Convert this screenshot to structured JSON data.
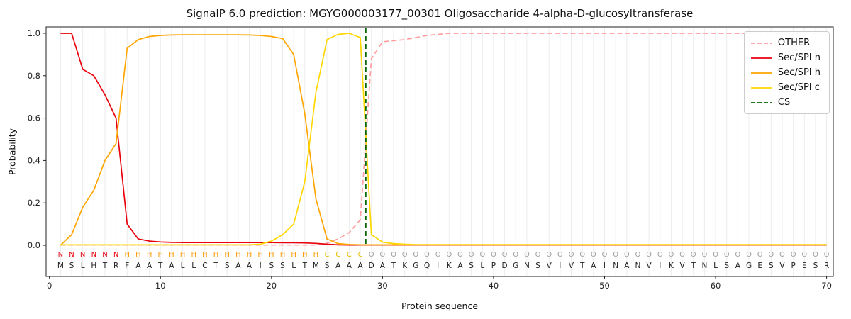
{
  "figure": {
    "title": "SignalP 6.0 prediction: MGYG000003177_00301 Oligosaccharide 4-alpha-D-glucosyltransferase",
    "xlabel": "Protein sequence",
    "ylabel": "Probability"
  },
  "legend": {
    "items": [
      {
        "label": "OTHER",
        "color": "#ff9f9f",
        "dash": true
      },
      {
        "label": "Sec/SPI n",
        "color": "#e8000b",
        "dash": false
      },
      {
        "label": "Sec/SPI h",
        "color": "#ffa500",
        "dash": false
      },
      {
        "label": "Sec/SPI c",
        "color": "#ffd700",
        "dash": false
      },
      {
        "label": "CS",
        "color": "#006400",
        "dash": true
      }
    ]
  },
  "chart_data": {
    "type": "line",
    "title": "SignalP 6.0 prediction: MGYG000003177_00301 Oligosaccharide 4-alpha-D-glucosyltransferase",
    "xlabel": "Protein sequence",
    "ylabel": "Probability",
    "xlim": [
      0,
      70
    ],
    "ylim": [
      0.0,
      1.0
    ],
    "x_ticks": [
      0,
      10,
      20,
      30,
      40,
      50,
      60,
      70
    ],
    "y_ticks": [
      "0.0",
      "0.2",
      "0.4",
      "0.6",
      "0.8",
      "1.0"
    ],
    "grid": "vertical-per-residue",
    "legend_position": "upper right",
    "cs_after_position": 28,
    "sequence": "MSLHTRFAATALLCTSAAISSLTMSAAADATKGQIKASLPDGNSVIVTAINANVIKVTNLSAGESVPESR",
    "regions": "NNNNNNHHHHHHHHHHHHHHHHHHCCCCOOOOOOOOOOOOOOOOOOOOOOOOOOOOOOOOOOOOOOOOOO",
    "region_colors": {
      "N": "#e8000b",
      "H": "#ff9900",
      "C": "#e8c000",
      "O": "#a0a0a0"
    },
    "series": [
      {
        "name": "OTHER",
        "color": "#ff9f9f",
        "dash": true,
        "values": [
          0.001,
          0.001,
          0.001,
          0.001,
          0.001,
          0.001,
          0.001,
          0.001,
          0.001,
          0.001,
          0.001,
          0.001,
          0.001,
          0.001,
          0.001,
          0.001,
          0.001,
          0.001,
          0.001,
          0.001,
          0.001,
          0.001,
          0.001,
          0.001,
          0.01,
          0.03,
          0.06,
          0.12,
          0.88,
          0.96,
          0.965,
          0.97,
          0.98,
          0.99,
          0.995,
          1.0,
          1.0,
          1.0,
          1.0,
          1.0,
          1.0,
          1.0,
          1.0,
          1.0,
          1.0,
          1.0,
          1.0,
          1.0,
          1.0,
          1.0,
          1.0,
          1.0,
          1.0,
          1.0,
          1.0,
          1.0,
          1.0,
          1.0,
          1.0,
          1.0,
          1.0,
          1.0,
          1.0,
          1.0,
          1.0,
          1.0,
          1.0,
          1.0,
          1.0,
          1.0
        ]
      },
      {
        "name": "Sec/SPI n",
        "color": "#e8000b",
        "dash": false,
        "values": [
          1.0,
          1.0,
          0.83,
          0.8,
          0.71,
          0.6,
          0.1,
          0.03,
          0.02,
          0.016,
          0.014,
          0.013,
          0.013,
          0.013,
          0.013,
          0.013,
          0.013,
          0.013,
          0.013,
          0.013,
          0.012,
          0.012,
          0.011,
          0.009,
          0.005,
          0.002,
          0.001,
          0.001,
          0.001,
          0.001,
          0.001,
          0.001,
          0.001,
          0.001,
          0.001,
          0.001,
          0.001,
          0.001,
          0.001,
          0.001,
          0.001,
          0.001,
          0.001,
          0.001,
          0.001,
          0.001,
          0.001,
          0.001,
          0.001,
          0.001,
          0.001,
          0.001,
          0.001,
          0.001,
          0.001,
          0.001,
          0.001,
          0.001,
          0.001,
          0.001,
          0.001,
          0.001,
          0.001,
          0.001,
          0.001,
          0.001,
          0.001,
          0.001,
          0.001,
          0.001
        ]
      },
      {
        "name": "Sec/SPI h",
        "color": "#ffa500",
        "dash": false,
        "values": [
          0.001,
          0.05,
          0.18,
          0.26,
          0.4,
          0.48,
          0.93,
          0.97,
          0.985,
          0.99,
          0.992,
          0.993,
          0.993,
          0.993,
          0.993,
          0.993,
          0.993,
          0.992,
          0.99,
          0.985,
          0.975,
          0.9,
          0.62,
          0.22,
          0.03,
          0.008,
          0.004,
          0.002,
          0.002,
          0.002,
          0.002,
          0.002,
          0.002,
          0.002,
          0.002,
          0.002,
          0.002,
          0.002,
          0.002,
          0.002,
          0.002,
          0.002,
          0.002,
          0.002,
          0.002,
          0.002,
          0.002,
          0.002,
          0.002,
          0.002,
          0.002,
          0.002,
          0.002,
          0.002,
          0.002,
          0.002,
          0.002,
          0.002,
          0.002,
          0.002,
          0.002,
          0.002,
          0.002,
          0.002,
          0.002,
          0.002,
          0.002,
          0.002,
          0.002,
          0.002
        ]
      },
      {
        "name": "Sec/SPI c",
        "color": "#ffd700",
        "dash": false,
        "values": [
          0.002,
          0.002,
          0.002,
          0.002,
          0.002,
          0.002,
          0.002,
          0.002,
          0.002,
          0.002,
          0.002,
          0.002,
          0.002,
          0.002,
          0.002,
          0.002,
          0.002,
          0.002,
          0.005,
          0.02,
          0.05,
          0.1,
          0.3,
          0.72,
          0.97,
          0.995,
          1.0,
          0.98,
          0.05,
          0.015,
          0.008,
          0.005,
          0.003,
          0.003,
          0.003,
          0.003,
          0.003,
          0.003,
          0.003,
          0.003,
          0.003,
          0.003,
          0.003,
          0.003,
          0.003,
          0.003,
          0.003,
          0.003,
          0.003,
          0.003,
          0.003,
          0.003,
          0.003,
          0.003,
          0.003,
          0.003,
          0.003,
          0.003,
          0.003,
          0.003,
          0.003,
          0.003,
          0.003,
          0.003,
          0.003,
          0.003,
          0.003,
          0.003,
          0.003,
          0.003
        ]
      }
    ]
  }
}
